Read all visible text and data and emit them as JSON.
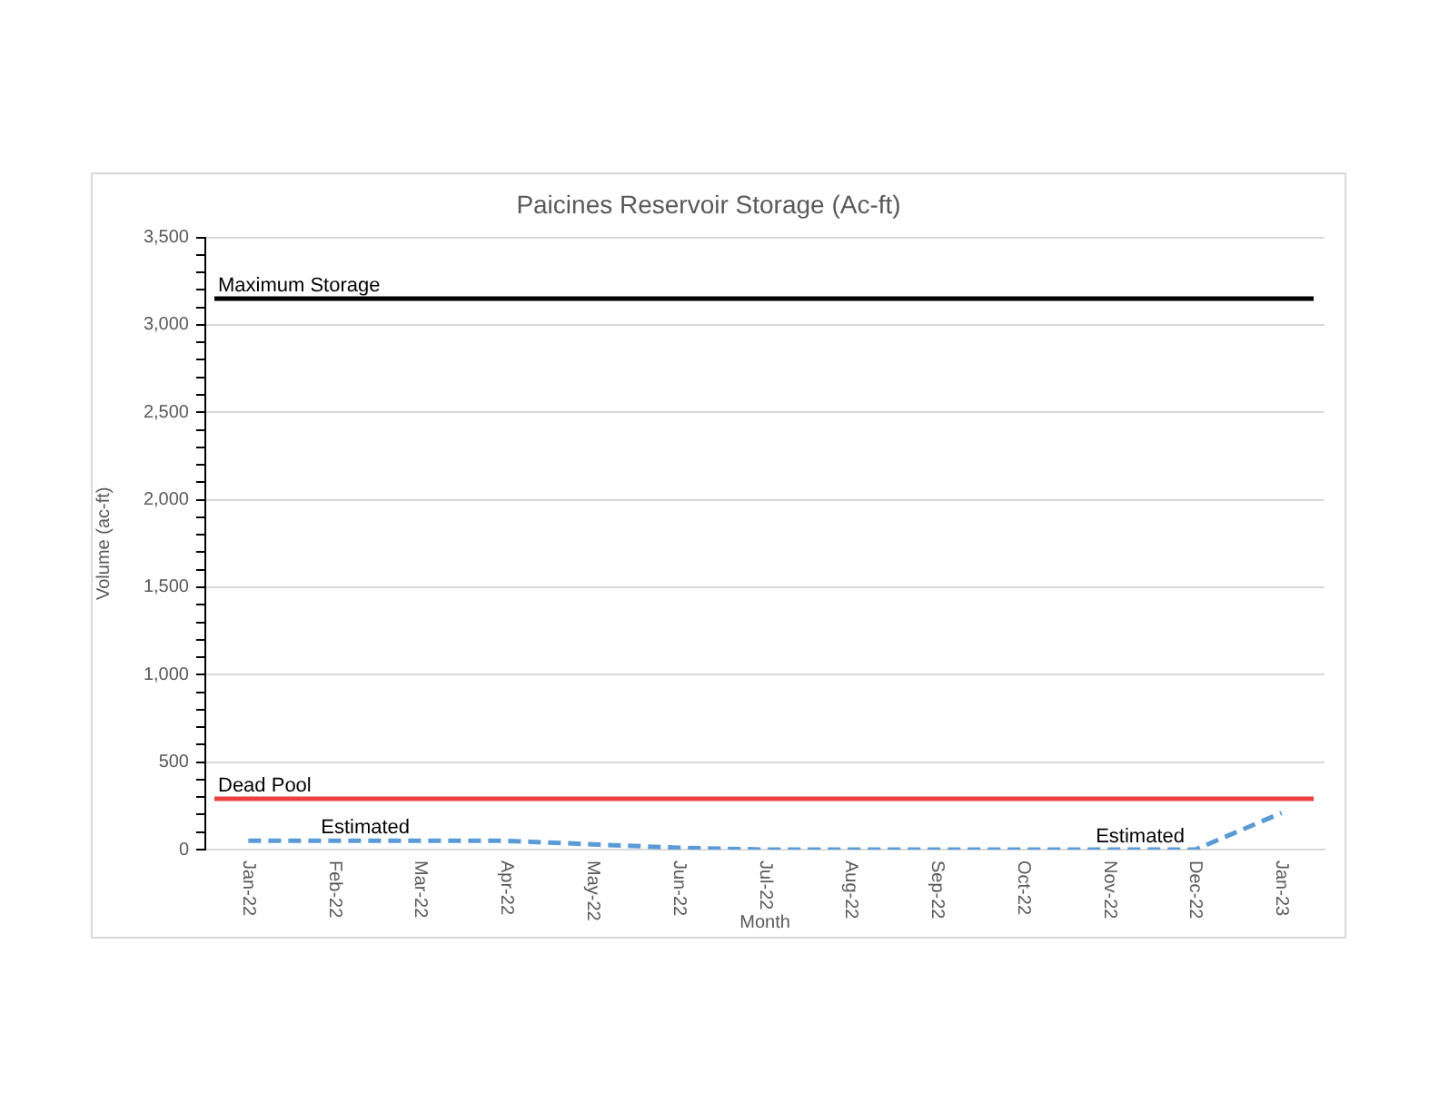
{
  "chart_data": {
    "type": "line",
    "title": "Paicines Reservoir Storage (Ac-ft)",
    "xlabel": "Month",
    "ylabel": "Volume (ac-ft)",
    "categories": [
      "Jan-22",
      "Feb-22",
      "Mar-22",
      "Apr-22",
      "May-22",
      "Jun-22",
      "Jul-22",
      "Aug-22",
      "Sep-22",
      "Oct-22",
      "Nov-22",
      "Dec-22",
      "Jan-23"
    ],
    "values": [
      50,
      50,
      50,
      50,
      30,
      10,
      0,
      0,
      0,
      0,
      0,
      0,
      210
    ],
    "color": "#5b9bd5",
    "line_style": "dashed",
    "ylim": [
      0,
      3500
    ],
    "yticks": [
      0,
      {
        "value": 100,
        "label": null
      },
      {
        "value": 200,
        "label": null
      },
      {
        "value": 300,
        "label": null
      },
      {
        "value": 400,
        "label": null
      },
      500,
      {
        "value": 600,
        "label": null
      },
      {
        "value": 700,
        "label": null
      },
      {
        "value": 800,
        "label": null
      },
      {
        "value": 900,
        "label": null
      },
      {
        "value": 1000,
        "label": "1,000"
      },
      {
        "value": 1100,
        "label": null
      },
      {
        "value": 1200,
        "label": null
      },
      {
        "value": 1300,
        "label": null
      },
      {
        "value": 1400,
        "label": null
      },
      {
        "value": 1500,
        "label": "1,500"
      },
      {
        "value": 1600,
        "label": null
      },
      {
        "value": 1700,
        "label": null
      },
      {
        "value": 1800,
        "label": null
      },
      {
        "value": 1900,
        "label": null
      },
      {
        "value": 2000,
        "label": "2,000"
      },
      {
        "value": 2100,
        "label": null
      },
      {
        "value": 2200,
        "label": null
      },
      {
        "value": 2300,
        "label": null
      },
      {
        "value": 2400,
        "label": null
      },
      {
        "value": 2500,
        "label": "2,500"
      },
      {
        "value": 2600,
        "label": null
      },
      {
        "value": 2700,
        "label": null
      },
      {
        "value": 2800,
        "label": null
      },
      {
        "value": 2900,
        "label": null
      },
      {
        "value": 3000,
        "label": "3,000"
      },
      {
        "value": 3100,
        "label": null
      },
      {
        "value": 3200,
        "label": null
      },
      {
        "value": 3300,
        "label": null
      },
      {
        "value": 3400,
        "label": null
      },
      {
        "value": 3500,
        "label": "3,500"
      }
    ],
    "grid": "y",
    "ref_lines": [
      {
        "axis": "y",
        "value": 3150,
        "label": "Maximum Storage",
        "color": "#000000"
      },
      {
        "axis": "y",
        "value": 290,
        "label": "Dead Pool",
        "color": "#ee4040"
      }
    ],
    "annotations": [
      {
        "text": "Estimated",
        "x": "Feb-22",
        "y": 50
      },
      {
        "text": "Estimated",
        "x": "Nov-22",
        "y": 0
      }
    ]
  }
}
